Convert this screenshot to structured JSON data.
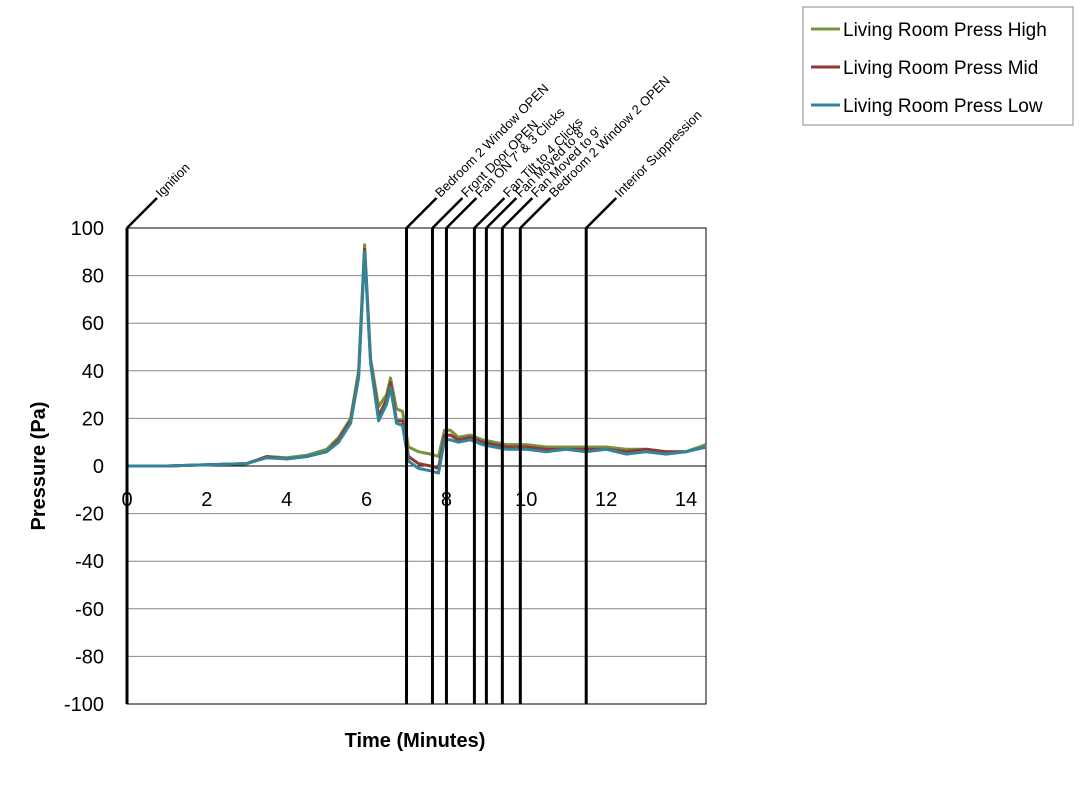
{
  "chart_data": {
    "type": "line",
    "title": "",
    "xlabel": "Time (Minutes)",
    "ylabel": "Pressure (Pa)",
    "xlim": [
      0,
      14.5
    ],
    "ylim": [
      -100,
      100
    ],
    "x_ticks": [
      "0",
      "2",
      "4",
      "6",
      "8",
      "10",
      "12",
      "14"
    ],
    "y_ticks": [
      "100",
      "80",
      "60",
      "40",
      "20",
      "0",
      "-20",
      "-40",
      "-60",
      "-80",
      "-100"
    ],
    "grid": "horizontal major gridlines",
    "legend_position": "top-right",
    "colors": {
      "high": "#77933c",
      "mid": "#953735",
      "low": "#31849b",
      "event": "#000000"
    },
    "events": [
      {
        "label": "Ignition",
        "x": 0
      },
      {
        "label": "Bedroom 2 Window OPEN",
        "x": 7.0
      },
      {
        "label": "Front Door OPEN",
        "x": 7.65
      },
      {
        "label": "Fan ON 7' & 3 Clicks",
        "x": 8.0
      },
      {
        "label": "Fan Tilt to 4 Clicks",
        "x": 8.7
      },
      {
        "label": "Fan Moved to 8'",
        "x": 9.0
      },
      {
        "label": "Fan Moved to 9'",
        "x": 9.4
      },
      {
        "label": "Bedroom 2 Window 2 OPEN",
        "x": 9.85
      },
      {
        "label": "Interior Suppression",
        "x": 11.5
      }
    ],
    "series": [
      {
        "name": "Living Room Press High",
        "x": [
          0,
          1,
          2,
          3,
          3.5,
          4,
          4.5,
          5,
          5.3,
          5.6,
          5.8,
          5.95,
          6.1,
          6.3,
          6.5,
          6.6,
          6.75,
          6.9,
          7.05,
          7.3,
          7.6,
          7.8,
          7.95,
          8.1,
          8.3,
          8.6,
          8.9,
          9.2,
          9.5,
          10,
          10.5,
          11,
          11.5,
          12,
          12.5,
          13,
          13.5,
          14,
          14.5
        ],
        "y": [
          0,
          0,
          0.5,
          1,
          4,
          3.5,
          4.5,
          7,
          12,
          20,
          40,
          93,
          45,
          25,
          30,
          37,
          24,
          23,
          8,
          6,
          5,
          4,
          15,
          15,
          12,
          13,
          11,
          10,
          9,
          9,
          8,
          8,
          8,
          8,
          7,
          7,
          6,
          6,
          9
        ]
      },
      {
        "name": "Living Room Press Mid",
        "x": [
          0,
          1,
          2,
          3,
          3.5,
          4,
          4.5,
          5,
          5.3,
          5.6,
          5.8,
          5.95,
          6.1,
          6.3,
          6.5,
          6.6,
          6.75,
          6.9,
          7.05,
          7.3,
          7.6,
          7.8,
          7.95,
          8.1,
          8.3,
          8.6,
          8.9,
          9.2,
          9.5,
          10,
          10.5,
          11,
          11.5,
          12,
          12.5,
          13,
          13.5,
          14,
          14.5
        ],
        "y": [
          0,
          0,
          0.5,
          1,
          4,
          3,
          4,
          6,
          11,
          19,
          38,
          91,
          44,
          21,
          28,
          35,
          19,
          19,
          4,
          1,
          0,
          -1,
          13,
          13,
          11,
          12,
          10,
          9,
          8,
          8,
          7,
          7,
          7,
          7,
          6,
          7,
          6,
          6,
          8
        ]
      },
      {
        "name": "Living Room Press Low",
        "x": [
          0,
          1,
          2,
          3,
          3.5,
          4,
          4.5,
          5,
          5.3,
          5.6,
          5.8,
          5.95,
          6.1,
          6.3,
          6.5,
          6.6,
          6.75,
          6.9,
          7.05,
          7.3,
          7.6,
          7.8,
          7.95,
          8.1,
          8.3,
          8.6,
          8.9,
          9.2,
          9.5,
          10,
          10.5,
          11,
          11.5,
          12,
          12.5,
          13,
          13.5,
          14,
          14.5
        ],
        "y": [
          0,
          0,
          0.5,
          1,
          3.5,
          3,
          4,
          6,
          10,
          18,
          37,
          90,
          43,
          19,
          26,
          33,
          18,
          17,
          2,
          -1,
          -2,
          -3,
          11,
          11,
          10,
          11,
          9,
          8,
          7,
          7,
          6,
          7,
          6,
          7,
          5,
          6,
          5,
          6,
          8
        ]
      }
    ]
  }
}
